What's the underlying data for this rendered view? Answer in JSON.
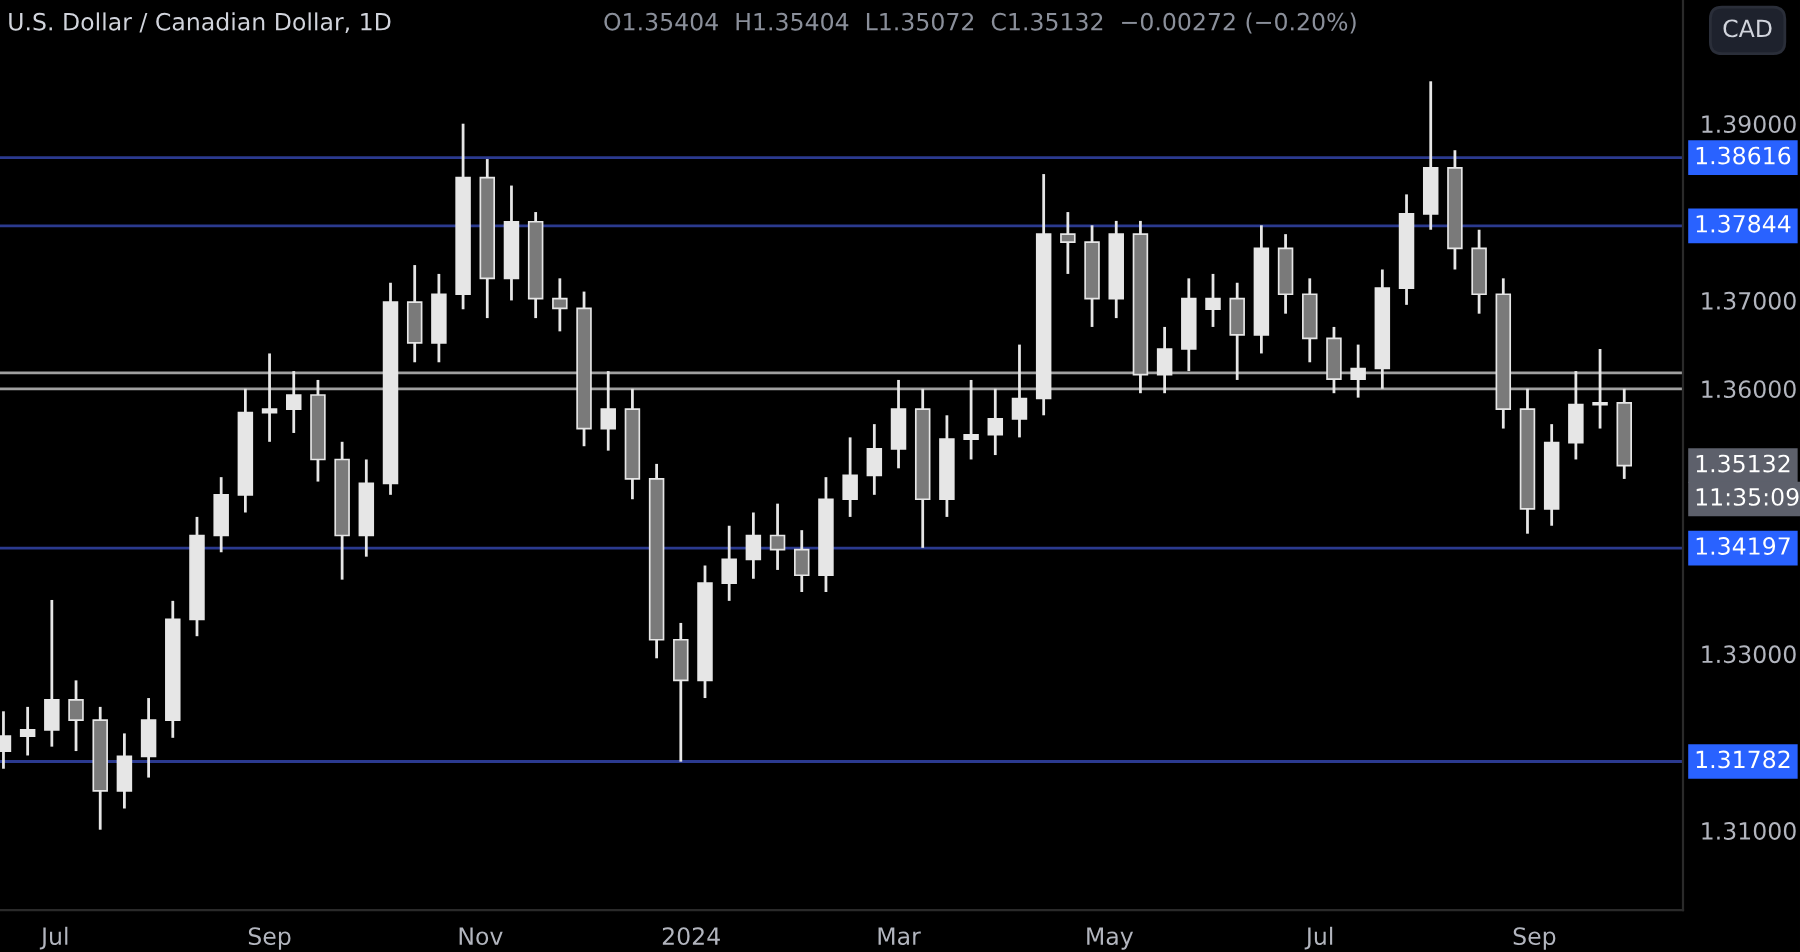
{
  "chart_data": {
    "type": "candlestick",
    "title": "U.S. Dollar / Canadian Dollar, 1D",
    "subtitle": "O1.35404  H1.35404  L1.35072  C1.35132  −0.00272 (−0.20%)",
    "x": [
      "2023-06-16",
      "2023-06-23",
      "2023-06-30",
      "2023-07-07",
      "2023-07-14",
      "2023-07-21",
      "2023-07-28",
      "2023-08-04",
      "2023-08-11",
      "2023-08-18",
      "2023-08-25",
      "2023-09-01",
      "2023-09-08",
      "2023-09-15",
      "2023-09-22",
      "2023-09-29",
      "2023-10-06",
      "2023-10-13",
      "2023-10-20",
      "2023-10-27",
      "2023-11-03",
      "2023-11-10",
      "2023-11-17",
      "2023-11-24",
      "2023-12-01",
      "2023-12-08",
      "2023-12-15",
      "2023-12-22",
      "2023-12-29",
      "2024-01-05",
      "2024-01-12",
      "2024-01-19",
      "2024-01-26",
      "2024-02-02",
      "2024-02-09",
      "2024-02-16",
      "2024-02-23",
      "2024-03-01",
      "2024-03-08",
      "2024-03-15",
      "2024-03-22",
      "2024-03-29",
      "2024-04-05",
      "2024-04-12",
      "2024-04-19",
      "2024-04-26",
      "2024-05-03",
      "2024-05-10",
      "2024-05-17",
      "2024-05-24",
      "2024-05-31",
      "2024-06-07",
      "2024-06-14",
      "2024-06-21",
      "2024-06-28",
      "2024-07-05",
      "2024-07-12",
      "2024-07-19",
      "2024-07-26",
      "2024-08-02",
      "2024-08-09",
      "2024-08-16",
      "2024-08-23",
      "2024-08-30",
      "2024-09-06",
      "2024-09-13",
      "2024-09-20",
      "2024-09-27"
    ],
    "series": [
      {
        "color": "#e6e6e6",
        "ohlc": [
          [
            1.319,
            1.3235,
            1.317,
            1.3207
          ],
          [
            1.3207,
            1.324,
            1.3185,
            1.3214
          ],
          [
            1.3214,
            1.3361,
            1.3195,
            1.3248
          ],
          [
            1.3248,
            1.327,
            1.319,
            1.3225
          ],
          [
            1.3225,
            1.324,
            1.3101,
            1.3145
          ],
          [
            1.3145,
            1.321,
            1.3125,
            1.3184
          ],
          [
            1.3184,
            1.325,
            1.316,
            1.3225
          ],
          [
            1.3225,
            1.336,
            1.3205,
            1.3339
          ],
          [
            1.3339,
            1.3455,
            1.332,
            1.3434
          ],
          [
            1.3434,
            1.35,
            1.3415,
            1.348
          ],
          [
            1.348,
            1.36,
            1.346,
            1.3573
          ],
          [
            1.3573,
            1.364,
            1.354,
            1.3577
          ],
          [
            1.3577,
            1.362,
            1.355,
            1.3593
          ],
          [
            1.3593,
            1.361,
            1.3495,
            1.352
          ],
          [
            1.352,
            1.354,
            1.3384,
            1.3434
          ],
          [
            1.3434,
            1.352,
            1.341,
            1.3493
          ],
          [
            1.3493,
            1.372,
            1.348,
            1.3698
          ],
          [
            1.3698,
            1.374,
            1.363,
            1.3652
          ],
          [
            1.3652,
            1.373,
            1.363,
            1.3707
          ],
          [
            1.3707,
            1.39,
            1.369,
            1.3839
          ],
          [
            1.3839,
            1.386,
            1.368,
            1.3725
          ],
          [
            1.3725,
            1.383,
            1.37,
            1.3789
          ],
          [
            1.3789,
            1.38,
            1.368,
            1.3702
          ],
          [
            1.3702,
            1.3725,
            1.3665,
            1.3691
          ],
          [
            1.3691,
            1.371,
            1.3535,
            1.3555
          ],
          [
            1.3555,
            1.362,
            1.353,
            1.3577
          ],
          [
            1.3577,
            1.36,
            1.3475,
            1.3498
          ],
          [
            1.3498,
            1.3515,
            1.3295,
            1.3316
          ],
          [
            1.3316,
            1.3335,
            1.3178,
            1.327
          ],
          [
            1.327,
            1.34,
            1.325,
            1.338
          ],
          [
            1.338,
            1.3445,
            1.336,
            1.3407
          ],
          [
            1.3407,
            1.346,
            1.3385,
            1.3434
          ],
          [
            1.3434,
            1.347,
            1.3395,
            1.3418
          ],
          [
            1.3418,
            1.344,
            1.337,
            1.3389
          ],
          [
            1.3389,
            1.35,
            1.337,
            1.3475
          ],
          [
            1.3475,
            1.3545,
            1.3455,
            1.3502
          ],
          [
            1.3502,
            1.356,
            1.348,
            1.3532
          ],
          [
            1.3532,
            1.361,
            1.351,
            1.3577
          ],
          [
            1.3577,
            1.36,
            1.342,
            1.3475
          ],
          [
            1.3475,
            1.357,
            1.3455,
            1.3543
          ],
          [
            1.3543,
            1.361,
            1.352,
            1.3548
          ],
          [
            1.3548,
            1.36,
            1.3525,
            1.3566
          ],
          [
            1.3566,
            1.365,
            1.3545,
            1.3589
          ],
          [
            1.3589,
            1.3843,
            1.357,
            1.3775
          ],
          [
            1.3775,
            1.38,
            1.373,
            1.3766
          ],
          [
            1.3766,
            1.3785,
            1.367,
            1.3702
          ],
          [
            1.3702,
            1.379,
            1.368,
            1.3775
          ],
          [
            1.3775,
            1.379,
            1.3595,
            1.3616
          ],
          [
            1.3616,
            1.367,
            1.3595,
            1.3645
          ],
          [
            1.3645,
            1.3725,
            1.362,
            1.3702
          ],
          [
            1.369,
            1.373,
            1.367,
            1.3702
          ],
          [
            1.3702,
            1.372,
            1.361,
            1.3661
          ],
          [
            1.3661,
            1.3785,
            1.364,
            1.3759
          ],
          [
            1.3759,
            1.3775,
            1.3685,
            1.3707
          ],
          [
            1.3707,
            1.3725,
            1.363,
            1.3657
          ],
          [
            1.3657,
            1.367,
            1.3595,
            1.3611
          ],
          [
            1.3611,
            1.365,
            1.359,
            1.3623
          ],
          [
            1.3623,
            1.3735,
            1.36,
            1.3714
          ],
          [
            1.3714,
            1.382,
            1.3695,
            1.3798
          ],
          [
            1.3798,
            1.3948,
            1.378,
            1.385
          ],
          [
            1.385,
            1.387,
            1.3735,
            1.3759
          ],
          [
            1.3759,
            1.378,
            1.3685,
            1.3707
          ],
          [
            1.3707,
            1.3725,
            1.3555,
            1.3577
          ],
          [
            1.3577,
            1.36,
            1.3436,
            1.3464
          ],
          [
            1.3464,
            1.356,
            1.3445,
            1.3539
          ],
          [
            1.3539,
            1.362,
            1.352,
            1.3582
          ],
          [
            1.3582,
            1.3645,
            1.3555,
            1.3584
          ],
          [
            1.3584,
            1.36,
            1.3498,
            1.3513
          ]
        ]
      }
    ],
    "xlim": [
      "2023-06-15",
      "2024-10-14"
    ],
    "xticks": [
      {
        "value": "2023-07-01",
        "label": "Jul"
      },
      {
        "value": "2023-09-01",
        "label": "Sep"
      },
      {
        "value": "2023-11-01",
        "label": "Nov"
      },
      {
        "value": "2024-01-01",
        "label": "2024"
      },
      {
        "value": "2024-03-01",
        "label": "Mar"
      },
      {
        "value": "2024-05-01",
        "label": "May"
      },
      {
        "value": "2024-07-01",
        "label": "Jul"
      },
      {
        "value": "2024-09-01",
        "label": "Sep"
      }
    ],
    "ylim": [
      1.301,
      1.404
    ],
    "yticks": [
      {
        "value": 1.31,
        "label": "1.31000"
      },
      {
        "value": 1.33,
        "label": "1.33000"
      },
      {
        "value": 1.36,
        "label": "1.36000"
      },
      {
        "value": 1.37,
        "label": "1.37000"
      },
      {
        "value": 1.39,
        "label": "1.39000"
      }
    ],
    "ref_lines": [
      {
        "axis": "y",
        "value": 1.38616,
        "label": "1.38616",
        "color": "#2b3a8f"
      },
      {
        "axis": "y",
        "value": 1.37844,
        "label": "1.37844",
        "color": "#2b3a8f"
      },
      {
        "axis": "y",
        "value": 1.3618,
        "color": "#a0a0a0"
      },
      {
        "axis": "y",
        "value": 1.36,
        "color": "#a0a0a0"
      },
      {
        "axis": "y",
        "value": 1.34197,
        "label": "1.34197",
        "color": "#2b3a8f"
      },
      {
        "axis": "y",
        "value": 1.31782,
        "label": "1.31782",
        "color": "#2b3a8f"
      }
    ],
    "annotations": [
      "1.35132",
      "11:35:09",
      "CAD"
    ],
    "grid": false
  }
}
